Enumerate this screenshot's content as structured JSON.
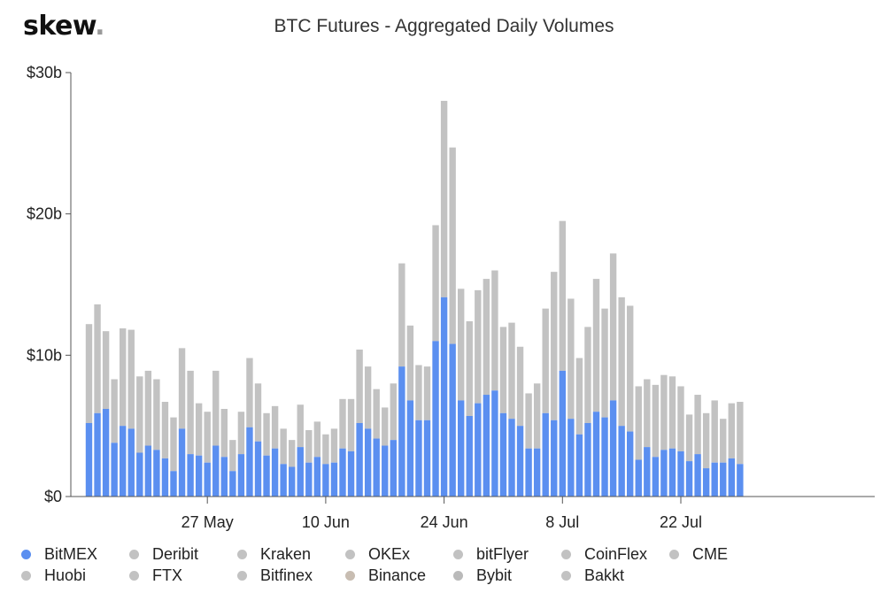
{
  "brand": {
    "name": "skew",
    "dot": "."
  },
  "chart_data": {
    "type": "bar",
    "stacked": true,
    "title": "BTC Futures - Aggregated Daily Volumes",
    "y_ticks": [
      "$0",
      "$10b",
      "$20b",
      "$30b"
    ],
    "y_tick_values": [
      0,
      10,
      20,
      30
    ],
    "ylim": [
      0,
      30
    ],
    "x_tick_labels": [
      {
        "label": "27 May",
        "index": 14
      },
      {
        "label": "10 Jun",
        "index": 28
      },
      {
        "label": "24 Jun",
        "index": 42
      },
      {
        "label": "8 Jul",
        "index": 56
      },
      {
        "label": "22 Jul",
        "index": 70
      }
    ],
    "series": [
      {
        "name": "BitMEX",
        "color": "#5b8ff0",
        "values": [
          5.2,
          5.9,
          6.2,
          3.8,
          5.0,
          4.8,
          3.1,
          3.6,
          3.3,
          2.7,
          1.8,
          4.8,
          3.0,
          2.9,
          2.4,
          3.6,
          2.8,
          1.8,
          3.0,
          4.9,
          3.9,
          2.9,
          3.4,
          2.3,
          2.1,
          3.5,
          2.4,
          2.8,
          2.3,
          2.4,
          3.4,
          3.2,
          5.2,
          4.8,
          4.1,
          3.6,
          4.0,
          9.2,
          6.8,
          5.4,
          5.4,
          11.0,
          14.1,
          10.8,
          6.8,
          5.7,
          6.6,
          7.2,
          7.5,
          5.9,
          5.5,
          5.0,
          3.4,
          3.4,
          5.9,
          5.4,
          8.9,
          5.5,
          4.4,
          5.2,
          6.0,
          5.6,
          6.8,
          5.0,
          4.6,
          2.6,
          3.5,
          2.8,
          3.3,
          3.4,
          3.2,
          2.5,
          3.0,
          2.0,
          2.4,
          2.4,
          2.7,
          2.3
        ]
      },
      {
        "name": "Deribit",
        "color": "#c2c2c2",
        "values": [
          7.0,
          7.7,
          5.5,
          4.5,
          6.9,
          7.0,
          5.4,
          5.3,
          5.0,
          4.0,
          3.8,
          5.7,
          5.9,
          3.7,
          3.6,
          5.3,
          3.4,
          2.2,
          3.0,
          4.9,
          4.1,
          3.0,
          3.0,
          2.5,
          1.9,
          3.0,
          2.3,
          2.5,
          2.1,
          2.4,
          3.5,
          3.7,
          5.2,
          4.4,
          3.5,
          2.7,
          4.0,
          7.3,
          5.3,
          3.9,
          3.8,
          8.2,
          13.9,
          13.9,
          7.9,
          6.7,
          8.0,
          8.2,
          8.5,
          6.1,
          6.8,
          5.6,
          3.9,
          4.6,
          7.4,
          10.5,
          10.6,
          8.5,
          5.4,
          6.8,
          9.4,
          7.7,
          10.4,
          9.1,
          8.9,
          5.2,
          4.8,
          5.1,
          5.3,
          5.1,
          4.6,
          3.3,
          4.2,
          3.9,
          4.4,
          3.1,
          3.9,
          4.4
        ]
      },
      {
        "name": "Kraken",
        "color": "#c2c2c2",
        "values": []
      },
      {
        "name": "OKEx",
        "color": "#c2c2c2",
        "values": []
      },
      {
        "name": "bitFlyer",
        "color": "#c2c2c2",
        "values": []
      },
      {
        "name": "CoinFlex",
        "color": "#c2c2c2",
        "values": []
      },
      {
        "name": "CME",
        "color": "#c2c2c2",
        "values": []
      },
      {
        "name": "Huobi",
        "color": "#c2c2c2",
        "values": []
      },
      {
        "name": "FTX",
        "color": "#c2c2c2",
        "values": []
      },
      {
        "name": "Bitfinex",
        "color": "#c2c2c2",
        "values": []
      },
      {
        "name": "Binance",
        "color": "#c8bdb2",
        "values": []
      },
      {
        "name": "Bybit",
        "color": "#bababa",
        "values": []
      },
      {
        "name": "Bakkt",
        "color": "#c2c2c2",
        "values": []
      }
    ],
    "legend_position": "bottom",
    "grid": false
  }
}
